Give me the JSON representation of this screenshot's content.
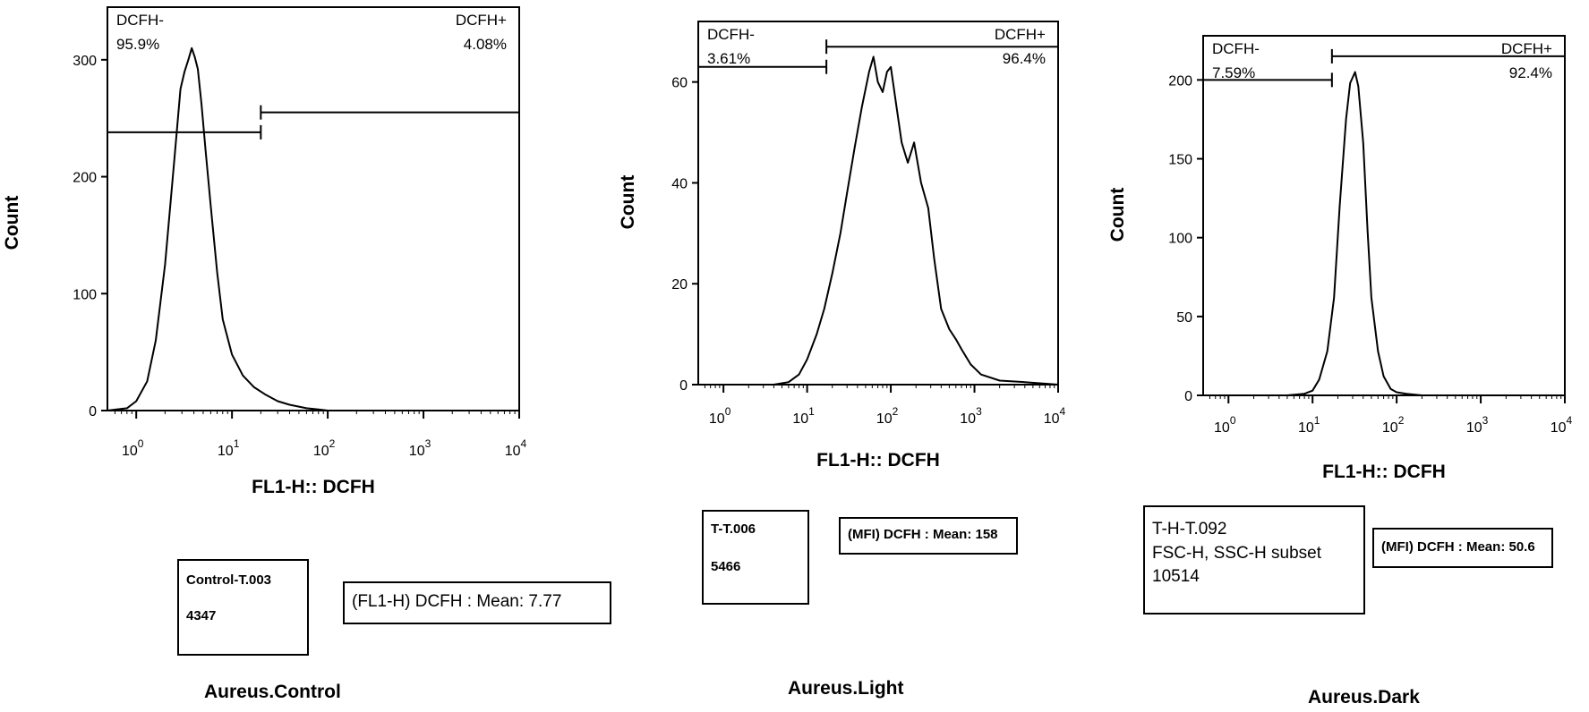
{
  "chart_data": [
    {
      "type": "histogram",
      "title": "Aureus.Control",
      "xlabel": "FL1-H:: DCFH",
      "ylabel": "Count",
      "x_scale": "log",
      "xlim": [
        0.5,
        10000
      ],
      "ylim": [
        0,
        345
      ],
      "yticks": [
        0,
        100,
        200,
        300
      ],
      "xtick_labels": [
        [
          "10",
          "0"
        ],
        [
          "10",
          "1"
        ],
        [
          "10",
          "2"
        ],
        [
          "10",
          "3"
        ],
        [
          "10",
          "4"
        ]
      ],
      "x": [
        0.5,
        0.8,
        1.0,
        1.3,
        1.6,
        2.0,
        2.5,
        2.9,
        3.2,
        3.5,
        3.8,
        4.1,
        4.4,
        4.8,
        5.3,
        6.0,
        7.0,
        8.0,
        10,
        13,
        17,
        22,
        30,
        40,
        60,
        80,
        100,
        200,
        1000,
        10000
      ],
      "values": [
        0,
        2,
        8,
        25,
        60,
        125,
        215,
        275,
        290,
        300,
        310,
        302,
        292,
        262,
        222,
        175,
        118,
        78,
        48,
        30,
        20,
        14,
        8,
        5,
        2,
        1,
        0,
        0,
        0,
        0
      ],
      "gates": [
        {
          "name": "DCFH-",
          "pct": "95.9%",
          "from": 0.5,
          "to": 20,
          "y": 238
        },
        {
          "name": "DCFH+",
          "pct": "4.08%",
          "from": 20,
          "to": 10000,
          "y": 255
        }
      ],
      "info_lines": [
        "Control-T.003",
        "4347"
      ],
      "stat": "(FL1-H) DCFH : Mean: 7.77"
    },
    {
      "type": "histogram",
      "title": "Aureus.Light",
      "xlabel": "FL1-H:: DCFH",
      "ylabel": "Count",
      "x_scale": "log",
      "xlim": [
        0.5,
        10000
      ],
      "ylim": [
        0,
        72
      ],
      "yticks": [
        0,
        20,
        40,
        60
      ],
      "xtick_labels": [
        [
          "10",
          "0"
        ],
        [
          "10",
          "1"
        ],
        [
          "10",
          "2"
        ],
        [
          "10",
          "3"
        ],
        [
          "10",
          "4"
        ]
      ],
      "x": [
        0.5,
        2,
        4,
        6,
        8,
        10,
        13,
        16,
        20,
        25,
        30,
        37,
        45,
        55,
        62,
        70,
        80,
        90,
        100,
        115,
        135,
        160,
        190,
        230,
        280,
        330,
        400,
        500,
        600,
        700,
        900,
        1200,
        2000,
        4000,
        10000
      ],
      "values": [
        0,
        0,
        0,
        0.5,
        2,
        5,
        10,
        15,
        22,
        30,
        38,
        47,
        55,
        62,
        65,
        60,
        58,
        62,
        63,
        56,
        48,
        44,
        48,
        40,
        35,
        25,
        15,
        11,
        9,
        7,
        4,
        2,
        0.8,
        0.5,
        0
      ],
      "gates": [
        {
          "name": "DCFH-",
          "pct": "3.61%",
          "from": 0.5,
          "to": 17,
          "y": 63
        },
        {
          "name": "DCFH+",
          "pct": "96.4%",
          "from": 17,
          "to": 10000,
          "y": 67
        }
      ],
      "info_lines": [
        "T-T.006",
        "5466"
      ],
      "stat": "(MFI) DCFH : Mean: 158"
    },
    {
      "type": "histogram",
      "title": "Aureus.Dark",
      "xlabel": "FL1-H:: DCFH",
      "ylabel": "Count",
      "x_scale": "log",
      "xlim": [
        0.5,
        10000
      ],
      "ylim": [
        0,
        228
      ],
      "yticks": [
        0,
        50,
        100,
        150,
        200
      ],
      "xtick_labels": [
        [
          "10",
          "0"
        ],
        [
          "10",
          "1"
        ],
        [
          "10",
          "2"
        ],
        [
          "10",
          "3"
        ],
        [
          "10",
          "4"
        ]
      ],
      "x": [
        0.5,
        5,
        8,
        10,
        12,
        15,
        18,
        21,
        25,
        28,
        32,
        35,
        40,
        45,
        50,
        60,
        70,
        85,
        100,
        130,
        200,
        10000
      ],
      "values": [
        0,
        0,
        1,
        3,
        10,
        28,
        62,
        120,
        175,
        198,
        205,
        196,
        160,
        105,
        62,
        28,
        12,
        4,
        2,
        1,
        0,
        0
      ],
      "gates": [
        {
          "name": "DCFH-",
          "pct": "7.59%",
          "from": 0.5,
          "to": 17,
          "y": 200
        },
        {
          "name": "DCFH+",
          "pct": "92.4%",
          "from": 17,
          "to": 10000,
          "y": 215
        }
      ],
      "info_lines": [
        "T-H-T.092",
        "FSC-H, SSC-H subset",
        "10514"
      ],
      "stat": "(MFI) DCFH : Mean: 50.6"
    }
  ]
}
